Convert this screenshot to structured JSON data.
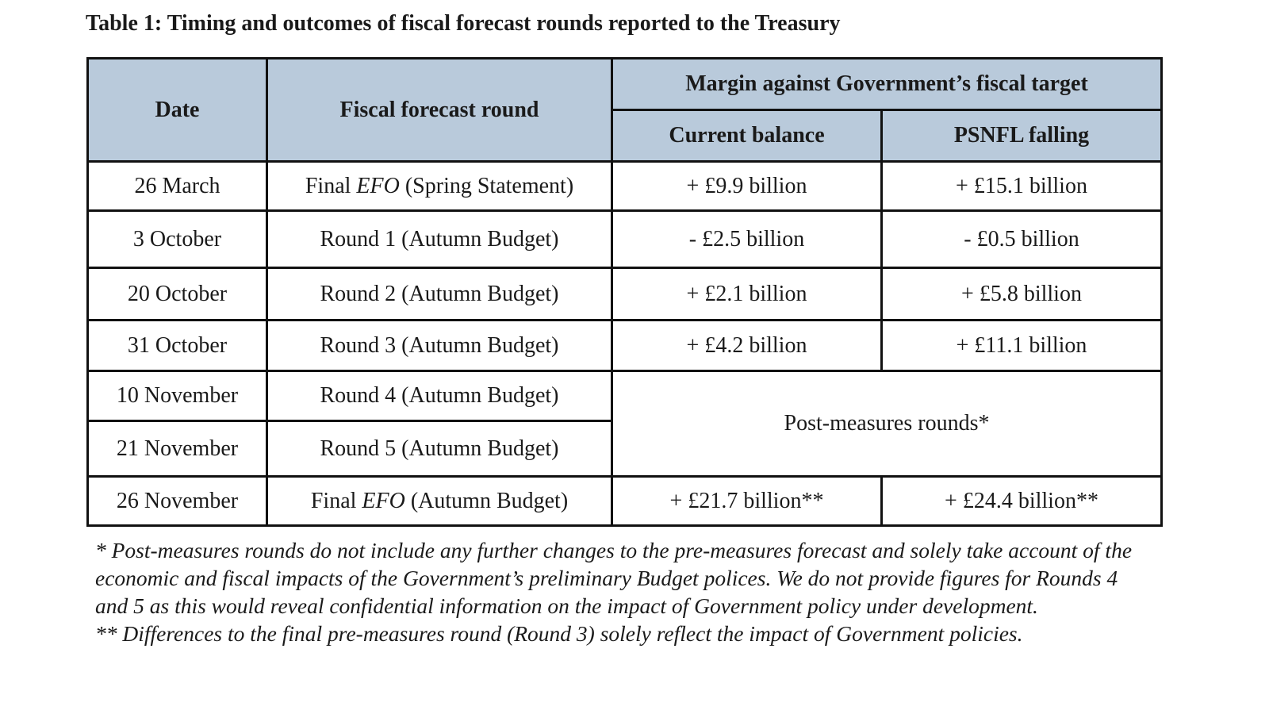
{
  "title": "Table 1: Timing and outcomes of fiscal forecast rounds reported to the Treasury",
  "table": {
    "header": {
      "date": "Date",
      "round": "Fiscal forecast round",
      "margin": "Margin against Government’s fiscal target",
      "current": "Current balance",
      "psnfl": "PSNFL falling"
    },
    "rows": [
      {
        "date": "26 March",
        "round": {
          "before": "Final ",
          "em": "EFO",
          "after": " (Spring Statement)"
        },
        "current": "+ £9.9 billion",
        "psnfl": "+ £15.1 billion"
      },
      {
        "date": "3 October",
        "round": "Round 1 (Autumn Budget)",
        "current": "- £2.5 billion",
        "psnfl": "- £0.5 billion"
      },
      {
        "date": "20 October",
        "round": "Round 2 (Autumn Budget)",
        "current": "+ £2.1 billion",
        "psnfl": "+ £5.8 billion"
      },
      {
        "date": "31 October",
        "round": "Round 3 (Autumn Budget)",
        "current": "+ £4.2 billion",
        "psnfl": "+ £11.1 billion"
      },
      {
        "date": "10 November",
        "round": "Round 4 (Autumn Budget)"
      },
      {
        "date": "21 November",
        "round": "Round 5 (Autumn Budget)"
      },
      {
        "date": "26 November",
        "round": {
          "before": "Final ",
          "em": "EFO",
          "after": " (Autumn Budget)"
        },
        "current": "+ £21.7 billion**",
        "psnfl": "+ £24.4 billion**"
      }
    ],
    "merged_note": "Post-measures rounds*"
  },
  "footnotes": [
    "* Post-measures rounds do not include any further changes to the pre-measures forecast and solely take account of the economic and fiscal impacts of the Government’s preliminary Budget polices. We do not provide figures for Rounds 4 and 5 as this would reveal confidential information on the impact of Government policy under development.",
    "** Differences to the final pre-measures round (Round 3) solely reflect the impact of Government policies."
  ]
}
